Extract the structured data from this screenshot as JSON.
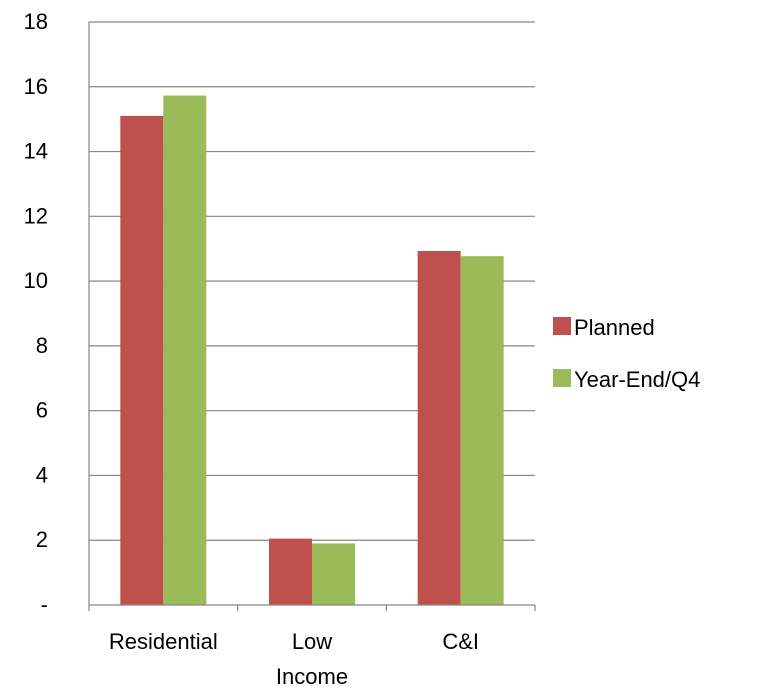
{
  "chart_data": {
    "type": "bar",
    "categories": [
      "Residential",
      "Low Income",
      "C&I"
    ],
    "category_lines": [
      [
        "Residential"
      ],
      [
        "Low",
        "Income"
      ],
      [
        "C&I"
      ]
    ],
    "series": [
      {
        "name": "Planned",
        "values": [
          15.1,
          2.05,
          10.93
        ],
        "color": "#c0504d"
      },
      {
        "name": "Year-End/Q4",
        "values": [
          15.73,
          1.9,
          10.77
        ],
        "color": "#9bbb59"
      }
    ],
    "ylim": [
      0,
      18
    ],
    "yticks": [
      0,
      2,
      4,
      6,
      8,
      10,
      12,
      14,
      16,
      18
    ],
    "ytick_labels": [
      "-",
      "2",
      "4",
      "6",
      "8",
      "10",
      "12",
      "14",
      "16",
      "18"
    ],
    "grid": true,
    "legend_position": "right",
    "gridline_color": "#868686",
    "axis_color": "#868686"
  }
}
